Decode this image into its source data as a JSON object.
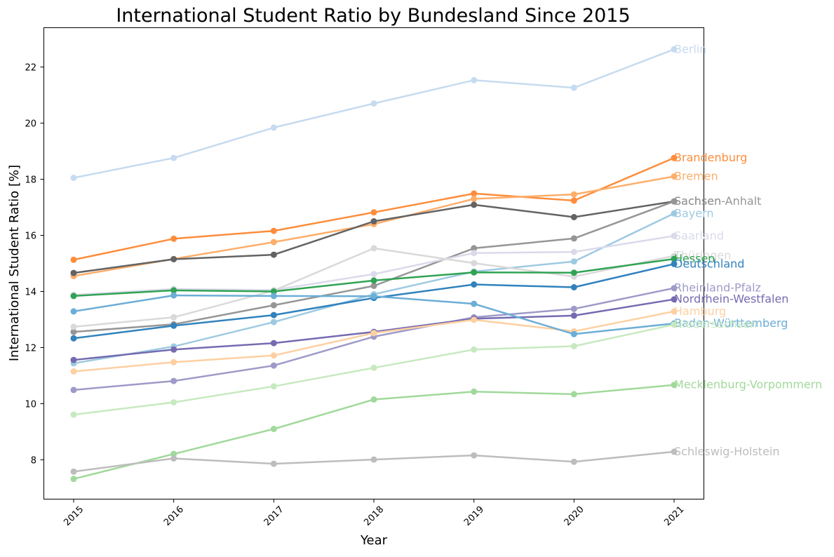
{
  "chart_data": {
    "type": "line",
    "title": "International Student Ratio by Bundesland Since 2015",
    "xlabel": "Year",
    "ylabel": "International Student Ratio [%]",
    "x": [
      "2015",
      "2016",
      "2017",
      "2018",
      "2019",
      "2020",
      "2021"
    ],
    "ylim": [
      6.6,
      23.4
    ],
    "yticks": [
      "8",
      "10",
      "12",
      "14",
      "16",
      "18",
      "20",
      "22"
    ],
    "grid": false,
    "legend": "series names written at the right end of each line",
    "series": [
      {
        "name": "Berlin",
        "color": "#c6dbef",
        "values": [
          18.05,
          18.76,
          19.84,
          20.7,
          21.53,
          21.26,
          22.63
        ]
      },
      {
        "name": "Brandenburg",
        "color": "#fd8d3c",
        "values": [
          15.13,
          15.88,
          16.16,
          16.82,
          17.49,
          17.24,
          18.76
        ]
      },
      {
        "name": "Bremen",
        "color": "#fdae6b",
        "values": [
          14.55,
          15.16,
          15.76,
          16.4,
          17.3,
          17.46,
          18.1
        ]
      },
      {
        "name": "Sachsen",
        "color": "#636363",
        "values": [
          14.66,
          15.15,
          15.31,
          16.5,
          17.09,
          16.65,
          17.21
        ]
      },
      {
        "name": "Sachsen-Anhalt",
        "color": "#969696",
        "values": [
          12.56,
          12.83,
          13.51,
          14.2,
          15.54,
          15.89,
          17.21
        ]
      },
      {
        "name": "Bayern",
        "color": "#9ecae1",
        "values": [
          11.44,
          12.04,
          12.91,
          13.9,
          14.71,
          15.07,
          16.78
        ]
      },
      {
        "name": "Saarland",
        "color": "#dadaeb",
        "values": [
          13.88,
          14.09,
          14.05,
          14.62,
          15.37,
          15.41,
          15.98
        ]
      },
      {
        "name": "Thüringen",
        "color": "#d9d9d9",
        "values": [
          12.74,
          13.08,
          14.03,
          15.54,
          15.01,
          14.53,
          15.27
        ]
      },
      {
        "name": "Hessen",
        "color": "#31a354",
        "values": [
          13.84,
          14.04,
          14.0,
          14.39,
          14.68,
          14.67,
          15.16
        ]
      },
      {
        "name": "Deutschland",
        "color": "#3182bd",
        "values": [
          12.33,
          12.78,
          13.16,
          13.77,
          14.25,
          14.15,
          14.98
        ]
      },
      {
        "name": "Rheinland-Pfalz",
        "color": "#9e9ac8",
        "values": [
          10.49,
          10.81,
          11.36,
          12.39,
          13.08,
          13.38,
          14.12
        ]
      },
      {
        "name": "Nordrhein-Westfalen",
        "color": "#756bb1",
        "values": [
          11.56,
          11.93,
          12.16,
          12.56,
          13.03,
          13.14,
          13.72
        ]
      },
      {
        "name": "Hamburg",
        "color": "#fdd0a2",
        "values": [
          11.15,
          11.48,
          11.72,
          12.52,
          12.99,
          12.58,
          13.29
        ]
      },
      {
        "name": "Baden-Württemberg",
        "color": "#6baed6",
        "values": [
          13.29,
          13.86,
          13.84,
          13.83,
          13.56,
          12.48,
          12.86
        ]
      },
      {
        "name": "Niedersachsen",
        "color": "#c7e9c0",
        "values": [
          9.61,
          10.05,
          10.62,
          11.28,
          11.93,
          12.05,
          12.82
        ]
      },
      {
        "name": "Mecklenburg-Vorpommern",
        "color": "#a1d99b",
        "values": [
          7.32,
          8.21,
          9.1,
          10.15,
          10.43,
          10.34,
          10.67
        ]
      },
      {
        "name": "Schleswig-Holstein",
        "color": "#bdbdbd",
        "values": [
          7.58,
          8.05,
          7.86,
          8.01,
          8.16,
          7.93,
          8.29
        ]
      }
    ]
  }
}
